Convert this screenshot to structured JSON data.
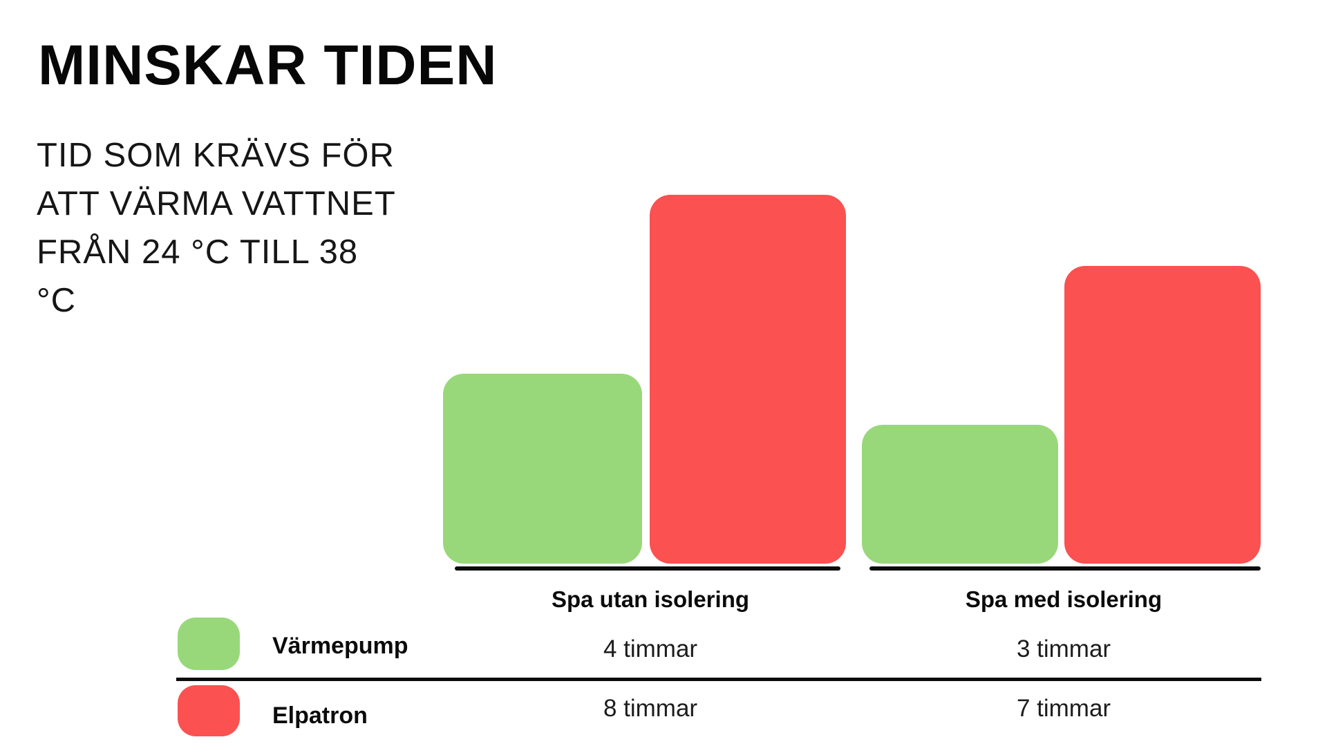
{
  "page": {
    "background": "#ffffff"
  },
  "header": {
    "title": "MINSKAR TIDEN",
    "subtitle_lines": [
      "TID SOM KRÄVS FÖR",
      "ATT VÄRMA VATTNET",
      "FRÅN 24 °C TILL 38",
      "°C"
    ]
  },
  "chart_data": {
    "type": "bar",
    "title": "MINSKAR TIDEN",
    "subtitle": "TID SOM KRÄVS FÖR ATT VÄRMA VATTNET FRÅN 24 °C TILL 38 °C",
    "categories": [
      "Spa utan isolering",
      "Spa med isolering"
    ],
    "series": [
      {
        "name": "Värmepump",
        "color": "#99D87A",
        "values": [
          4,
          3
        ],
        "labels": [
          "4 timmar",
          "3 timmar"
        ]
      },
      {
        "name": "Elpatron",
        "color": "#FB5151",
        "values": [
          8,
          7
        ],
        "labels": [
          "8 timmar",
          "7 timmar"
        ]
      }
    ],
    "unit": "timmar",
    "ylim": [
      0,
      8
    ],
    "grid": false,
    "axis_color": "#0c0c0c",
    "legend_position": "bottom-table"
  }
}
